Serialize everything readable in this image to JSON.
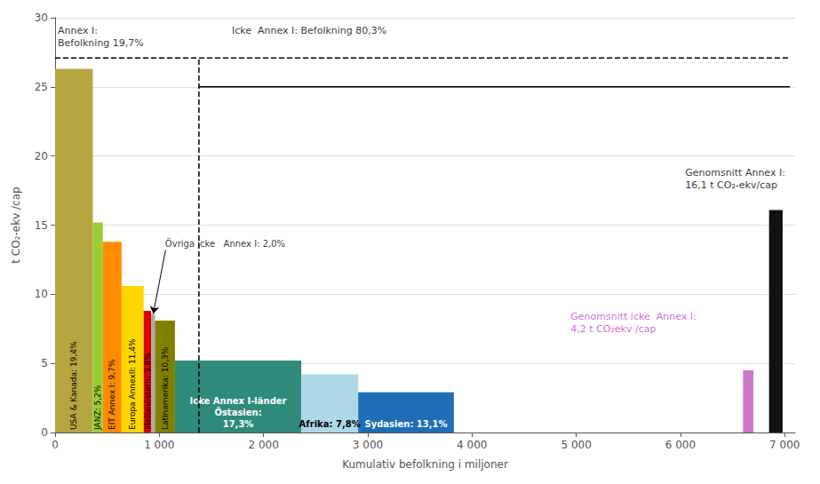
{
  "chart_data": {
    "type": "bar",
    "xlabel": "Kumulativ befolkning i miljoner",
    "ylabel": "t CO₂-ekv /cap",
    "x": [
      0,
      362,
      458,
      638,
      850,
      921,
      958,
      1150,
      2362,
      2908,
      6600,
      6850
    ],
    "widths": [
      362,
      96,
      180,
      212,
      71,
      37,
      192,
      1212,
      546,
      918,
      100,
      130
    ],
    "values": [
      26.3,
      15.2,
      13.8,
      10.6,
      8.8,
      8.6,
      8.1,
      5.2,
      4.2,
      2.9,
      4.5,
      16.1
    ],
    "colors": [
      "#b5a642",
      "#9acd32",
      "#ff8c00",
      "#ffd700",
      "#dd0000",
      "#aaaaaa",
      "#808000",
      "#2e8b7a",
      "#add8e6",
      "#1e6eb5",
      "#cc77cc",
      "#111111"
    ],
    "labels": [
      "USA & Kanada: 19,4%",
      "JANZ: 5,2%",
      "EIT Annex I: 9,7%",
      "Europa AnnexII: 11,4%",
      "Mellanöstern: 3,8%",
      null,
      "Latinamerika: 10,3%",
      "Icke Annex I-länder\nÖstasien:\n17,3%",
      "Afrika: 7,8%",
      "Sydasien: 13,1%",
      null,
      null
    ],
    "label_colors": [
      "black",
      "black",
      "black",
      "black",
      "black",
      null,
      "black",
      "white",
      "black",
      "white",
      null,
      null
    ],
    "xlim": [
      0,
      7100
    ],
    "xticks": [
      0,
      {
        "value": 1000,
        "label": "1 000"
      },
      {
        "value": 2000,
        "label": "2 000"
      },
      {
        "value": 3000,
        "label": "3 000"
      },
      {
        "value": 4000,
        "label": "4 000"
      },
      {
        "value": 5000,
        "label": "5 000"
      },
      {
        "value": 6000,
        "label": "6 000"
      },
      {
        "value": 7000,
        "label": "7 000"
      }
    ],
    "ylim": [
      0,
      30
    ],
    "yticks": [
      0,
      5,
      10,
      15,
      20,
      25,
      30
    ],
    "grid": true,
    "reference_lines": [
      {
        "x": [
          0,
          7050
        ],
        "y": [
          27.1,
          27.1
        ],
        "line_style": "dashed"
      },
      {
        "x": [
          1380,
          1380
        ],
        "y": [
          0,
          27.1
        ],
        "line_style": "dashed"
      },
      {
        "x": [
          1380,
          7050
        ],
        "y": [
          25.0,
          25.0
        ],
        "line_style": "solid"
      }
    ],
    "annotations": [
      {
        "text": "Annex I:\nBefolkning 19,7%",
        "x": 30,
        "y": 29.5
      },
      {
        "text": "Icke  Annex I: Befolkning 80,3%",
        "x": 1700,
        "y": 29.5
      },
      {
        "text": "Genomsnitt Annex I:\n16,1 t CO₂-ekv/cap",
        "x": 6050,
        "y": 19.2
      },
      {
        "text": "Genomsnitt icke  Annex I:\n4,2 t CO₂ekv /cap",
        "x": 4950,
        "y": 8.8,
        "color": "#cc44cc"
      },
      {
        "text": "Övriga icke   Annex I: 2,0%",
        "x": 1060,
        "y": 13.2,
        "arrow_x": 942,
        "arrow_y": 8.6
      }
    ]
  }
}
